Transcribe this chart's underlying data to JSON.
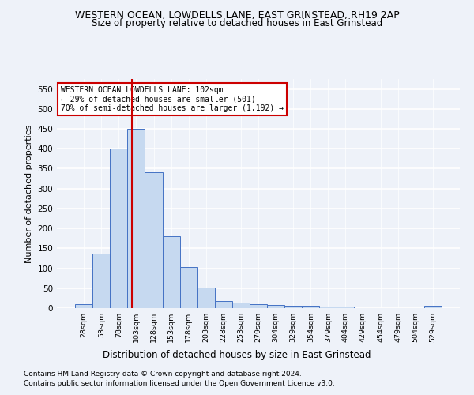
{
  "title": "WESTERN OCEAN, LOWDELLS LANE, EAST GRINSTEAD, RH19 2AP",
  "subtitle": "Size of property relative to detached houses in East Grinstead",
  "xlabel": "Distribution of detached houses by size in East Grinstead",
  "ylabel": "Number of detached properties",
  "bar_color": "#c6d9f0",
  "bar_edge_color": "#4472c4",
  "categories": [
    "28sqm",
    "53sqm",
    "78sqm",
    "103sqm",
    "128sqm",
    "153sqm",
    "178sqm",
    "203sqm",
    "228sqm",
    "253sqm",
    "279sqm",
    "304sqm",
    "329sqm",
    "354sqm",
    "379sqm",
    "404sqm",
    "429sqm",
    "454sqm",
    "479sqm",
    "504sqm",
    "529sqm"
  ],
  "values": [
    10,
    137,
    401,
    450,
    342,
    180,
    104,
    52,
    17,
    13,
    10,
    8,
    5,
    5,
    4,
    4,
    0,
    0,
    0,
    0,
    5
  ],
  "ylim": [
    0,
    575
  ],
  "yticks": [
    0,
    50,
    100,
    150,
    200,
    250,
    300,
    350,
    400,
    450,
    500,
    550
  ],
  "property_line_x": 2.75,
  "annotation_text": "WESTERN OCEAN LOWDELLS LANE: 102sqm\n← 29% of detached houses are smaller (501)\n70% of semi-detached houses are larger (1,192) →",
  "annotation_box_color": "#ffffff",
  "annotation_box_edge": "#cc0000",
  "property_line_color": "#cc0000",
  "footer_line1": "Contains HM Land Registry data © Crown copyright and database right 2024.",
  "footer_line2": "Contains public sector information licensed under the Open Government Licence v3.0.",
  "background_color": "#eef2f9",
  "grid_color": "#ffffff",
  "title_fontsize": 9,
  "subtitle_fontsize": 8.5,
  "xlabel_fontsize": 8.5,
  "ylabel_fontsize": 8,
  "footer_fontsize": 6.5
}
